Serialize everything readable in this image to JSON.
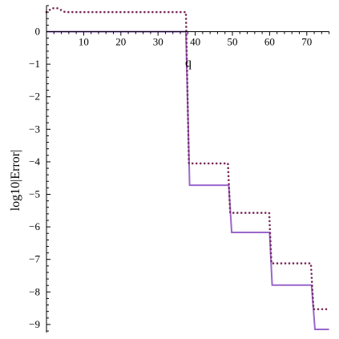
{
  "chart_data": {
    "type": "line",
    "title": "",
    "xlabel": "q",
    "ylabel": "log10|Error|",
    "xlim": [
      0,
      76
    ],
    "ylim": [
      -9.2,
      0.8
    ],
    "x_ticks": [
      10,
      20,
      30,
      40,
      50,
      60,
      70
    ],
    "y_ticks": [
      0,
      -1,
      -2,
      -3,
      -4,
      -5,
      -6,
      -7,
      -8,
      -9
    ],
    "x_tick_labels": [
      "10",
      "20",
      "30",
      "40",
      "50",
      "60",
      "70"
    ],
    "y_tick_labels": [
      "0",
      "−1",
      "−2",
      "−3",
      "−4",
      "−5",
      "−6",
      "−7",
      "−8",
      "−9"
    ],
    "grid": false,
    "legend": "none",
    "series": [
      {
        "style": "solid",
        "color": "#9966cc",
        "points": [
          [
            0,
            0
          ],
          [
            37.5,
            0
          ],
          [
            38.5,
            -4.72
          ],
          [
            49,
            -4.72
          ],
          [
            49.8,
            -6.17
          ],
          [
            60,
            -6.17
          ],
          [
            60.7,
            -7.79
          ],
          [
            71.3,
            -7.79
          ],
          [
            72.2,
            -9.15
          ],
          [
            76,
            -9.15
          ]
        ]
      },
      {
        "style": "dotted",
        "color": "#7a2a5a",
        "points": [
          [
            0,
            0.6
          ],
          [
            1.5,
            0.72
          ],
          [
            3,
            0.72
          ],
          [
            5,
            0.6
          ],
          [
            37.5,
            0.6
          ],
          [
            38.3,
            -4.05
          ],
          [
            48.8,
            -4.05
          ],
          [
            49.4,
            -5.57
          ],
          [
            59.9,
            -5.57
          ],
          [
            60.5,
            -7.12
          ],
          [
            71.1,
            -7.12
          ],
          [
            71.8,
            -8.53
          ],
          [
            76,
            -8.53
          ]
        ]
      }
    ]
  }
}
